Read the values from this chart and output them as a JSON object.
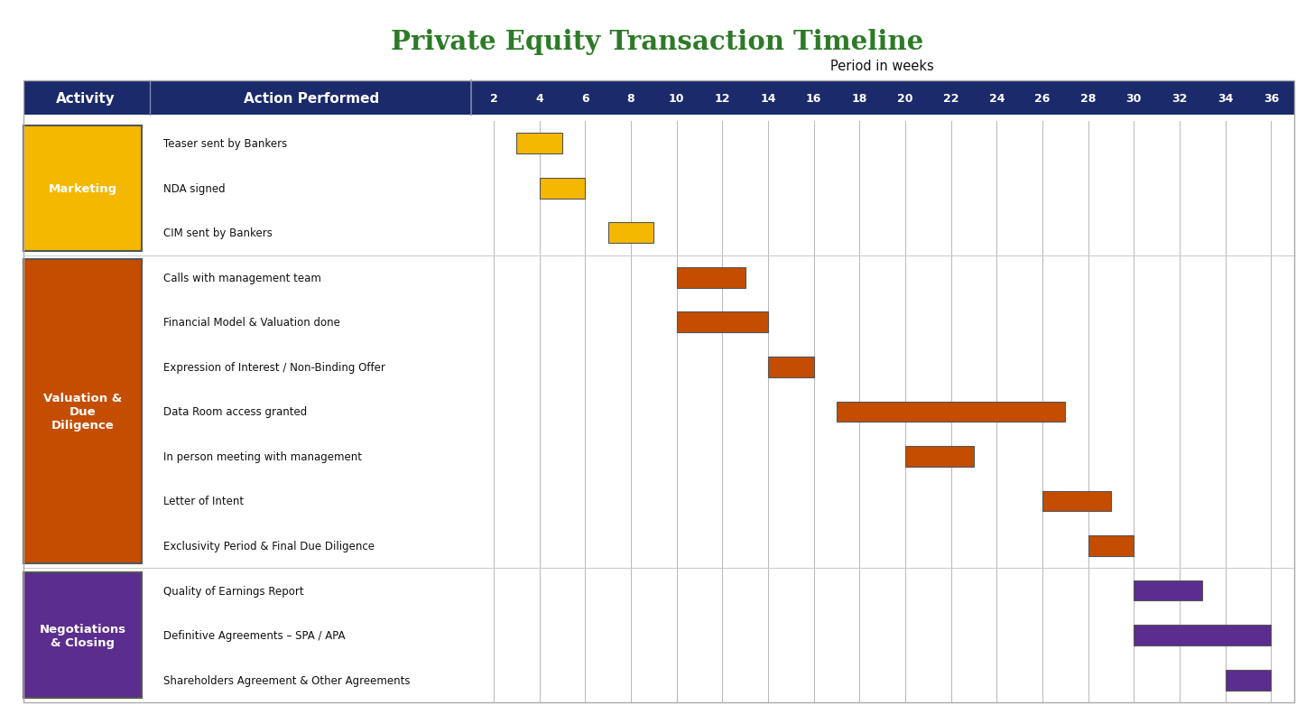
{
  "title": "Private Equity Transaction Timeline",
  "period_label": "Period in weeks",
  "weeks": [
    2,
    4,
    6,
    8,
    10,
    12,
    14,
    16,
    18,
    20,
    22,
    24,
    26,
    28,
    30,
    32,
    34,
    36
  ],
  "header_bg": "#1b2a6b",
  "title_color": "#2d7a27",
  "bg_color": "#ffffff",
  "grid_color": "#bbbbbb",
  "cat_info": [
    {
      "rows": [
        0,
        1,
        2
      ],
      "label": "Marketing",
      "color": "#f5b800"
    },
    {
      "rows": [
        3,
        4,
        5,
        6,
        7,
        8,
        9
      ],
      "label": "Valuation &\nDue\nDiligence",
      "color": "#c44d00"
    },
    {
      "rows": [
        10,
        11,
        12
      ],
      "label": "Negotiations\n& Closing",
      "color": "#5b2d8e"
    }
  ],
  "rows": [
    {
      "label": "Teaser sent by Bankers",
      "start": 3,
      "end": 5,
      "color": "#f5b800"
    },
    {
      "label": "NDA signed",
      "start": 4,
      "end": 6,
      "color": "#f5b800"
    },
    {
      "label": "CIM sent by Bankers",
      "start": 7,
      "end": 9,
      "color": "#f5b800"
    },
    {
      "label": "Calls with management team",
      "start": 10,
      "end": 13,
      "color": "#c44d00"
    },
    {
      "label": "Financial Model & Valuation done",
      "start": 10,
      "end": 14,
      "color": "#c44d00"
    },
    {
      "label": "Expression of Interest / Non-Binding Offer",
      "start": 14,
      "end": 16,
      "color": "#c44d00"
    },
    {
      "label": "Data Room access granted",
      "start": 17,
      "end": 27,
      "color": "#c44d00"
    },
    {
      "label": "In person meeting with management",
      "start": 20,
      "end": 23,
      "color": "#c44d00"
    },
    {
      "label": "Letter of Intent",
      "start": 26,
      "end": 29,
      "color": "#c44d00"
    },
    {
      "label": "Exclusivity Period & Final Due Diligence",
      "start": 28,
      "end": 30,
      "color": "#c44d00"
    },
    {
      "label": "Quality of Earnings Report",
      "start": 30,
      "end": 33,
      "color": "#5b2d8e"
    },
    {
      "label": "Definitive Agreements – SPA / APA",
      "start": 30,
      "end": 36,
      "color": "#5b2d8e"
    },
    {
      "label": "Shareholders Agreement & Other Agreements",
      "start": 34,
      "end": 36,
      "color": "#5b2d8e"
    }
  ],
  "week_min": 1,
  "week_max": 37
}
